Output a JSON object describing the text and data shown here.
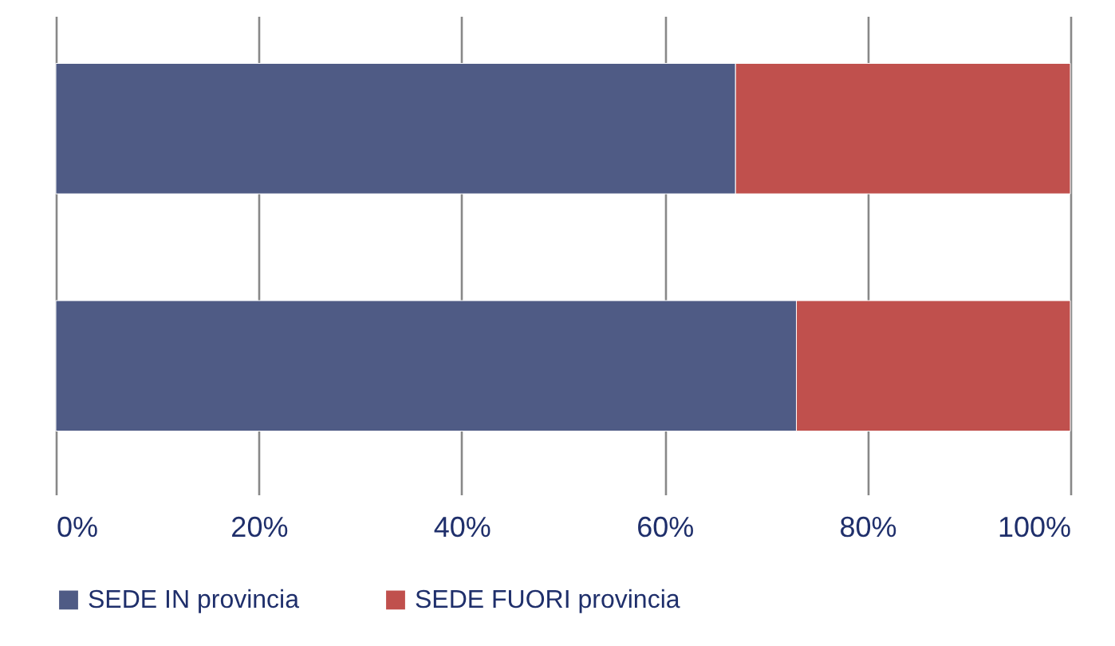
{
  "chart_data": {
    "type": "bar",
    "orientation": "horizontal",
    "stacked": true,
    "categories": [
      null,
      null
    ],
    "series": [
      {
        "name": "SEDE IN provincia",
        "color": "#4f5b85",
        "values": [
          67,
          73
        ]
      },
      {
        "name": "SEDE FUORI provincia",
        "color": "#c0504d",
        "values": [
          33,
          27
        ]
      }
    ],
    "xlim": [
      0,
      100
    ],
    "xticks": [
      {
        "value": 0,
        "label": "0%"
      },
      {
        "value": 20,
        "label": "20%"
      },
      {
        "value": 40,
        "label": "40%"
      },
      {
        "value": 60,
        "label": "60%"
      },
      {
        "value": 80,
        "label": "80%"
      },
      {
        "value": 100,
        "label": "100%"
      }
    ],
    "grid": "x",
    "legend": "bottom"
  }
}
